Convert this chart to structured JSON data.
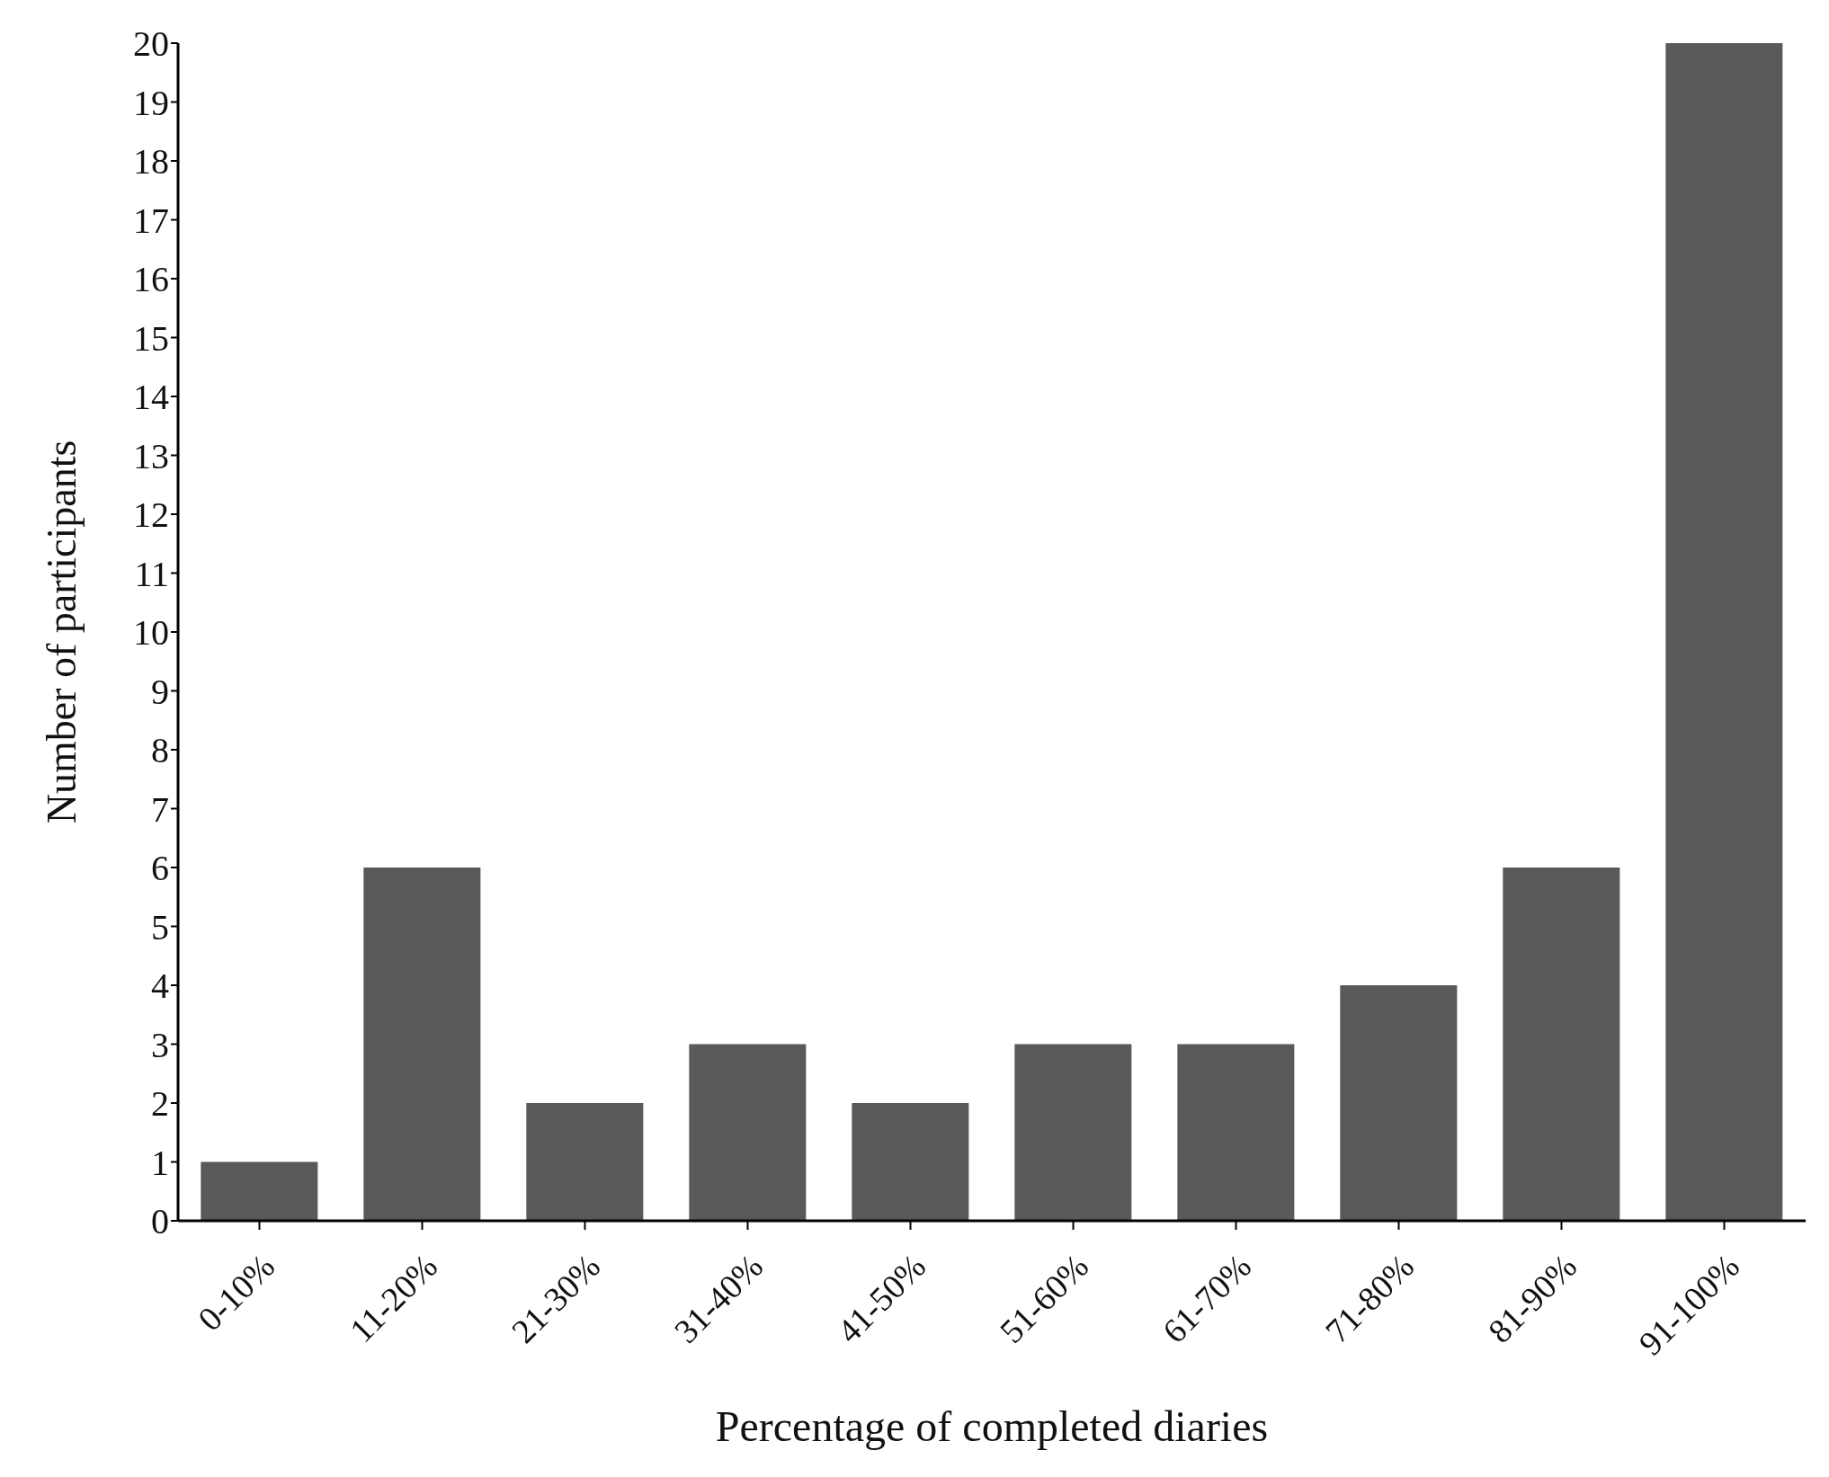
{
  "chart_data": {
    "type": "bar",
    "xlabel": "Percentage of completed diaries",
    "ylabel": "Number of participants",
    "categories": [
      "0-10%",
      "11-20%",
      "21-30%",
      "31-40%",
      "41-50%",
      "51-60%",
      "61-70%",
      "71-80%",
      "81-90%",
      "91-100%"
    ],
    "values": [
      1,
      6,
      2,
      3,
      2,
      3,
      3,
      4,
      6,
      20
    ],
    "color": "#595959",
    "ylim": [
      0,
      20
    ],
    "yticks": [
      0,
      1,
      2,
      3,
      4,
      5,
      6,
      7,
      8,
      9,
      10,
      11,
      12,
      13,
      14,
      15,
      16,
      17,
      18,
      19,
      20
    ],
    "grid": false
  }
}
